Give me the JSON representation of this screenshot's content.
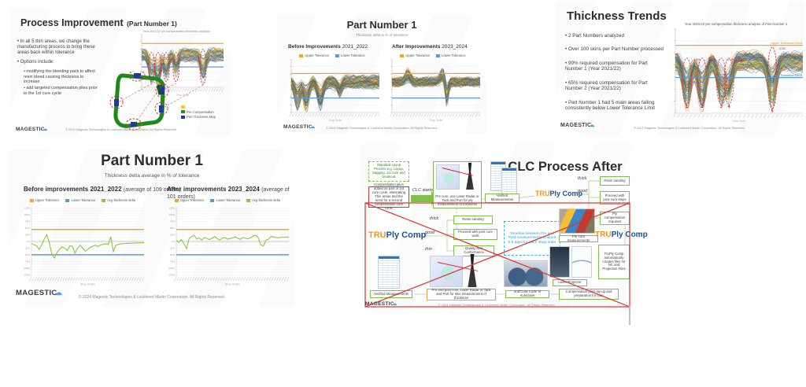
{
  "footer": {
    "text": "© 2024 Magestic Technologies & Lockheed Martin Corporation. All Rights Reserved."
  },
  "logo": {
    "name": "MAGESTIC",
    "cloud": "☁"
  },
  "slide1": {
    "title": "Process Improvement",
    "title_suffix": "(Part Number 1)",
    "bullets": [
      {
        "level": 0,
        "text": "In all 5 thin areas, we change the manufacturing process to bring these areas back within tolerance"
      },
      {
        "level": 0,
        "text": "Options include:"
      },
      {
        "level": 1,
        "text": "modifying the bleeding pack to affect resin bleed causing thickness to increase"
      },
      {
        "level": 1,
        "text": "add targeted compensation plies prior to the 1st cure cycle"
      }
    ],
    "chart_caption": "Year 2021/22 pre compensation thickness analysis",
    "legend": [
      {
        "color": "#f5c83b",
        "label": ""
      },
      {
        "color": "#2e8b2e",
        "label": "Pre Compensation"
      },
      {
        "color": "#24359c",
        "label": "Part Thickness Map"
      }
    ]
  },
  "slide2": {
    "title": "Part Number 1",
    "subtitle": "Thickness delta in % of tolerance",
    "before_bold": "Before Improvements",
    "before_rest": "2021_2022",
    "after_bold": "After Improvements",
    "after_rest": "2023_2024",
    "legend": [
      {
        "color": "#f2a33c",
        "label": "Upper Tolerance"
      },
      {
        "color": "#5b9bd5",
        "label": "Lower Tolerance"
      }
    ]
  },
  "slide3": {
    "title": "Thickness Trends",
    "bullets": [
      {
        "level": 0,
        "text": "2 Part Numbers analyzed"
      },
      {
        "level": 0,
        "text": "Over 100 skins per Part Number processed"
      },
      {
        "level": 0,
        "text": "99% required compensation for Part Number 1 (Year 2021/22)"
      },
      {
        "level": 0,
        "text": "65% required compensation for Part Number 2 (Year 2021/22)"
      },
      {
        "level": 0,
        "text": "Part Number 1 had 5 main areas falling consistently below Lower Tolerance Limit"
      }
    ],
    "chart_title": "Year 2021/22 pre compensation thickness analysis of Part Number 1"
  },
  "slide4": {
    "title": "Part Number 1",
    "subtitle": "Thickness delta average in % of tolerance",
    "before_bold": "Before improvements 2021_2022",
    "before_rest": "(average of 109 orders)",
    "after_bold": "After improvements 2023_2024",
    "after_rest": "(average of 101 orders)",
    "legend": [
      {
        "color": "#f2a33c",
        "label": "Upper Tolerance"
      },
      {
        "color": "#5b9bd5",
        "label": "Lower Tolerance"
      },
      {
        "color": "#8cc63f",
        "label": "Avg thickness delta"
      }
    ]
  },
  "slide5": {
    "title": "CLC Process After",
    "tru": "TRU",
    "ply": "Ply Comp",
    "boxes": {
      "standard": "Standard Layup Process e.g. Layup, bagging, 1st cure and breakout",
      "comp": "Compensation plies added as part of 1st cure cycle, eliminating Thin areas and the need for a second compensation cure cycle",
      "clc_starts": "CLC starts",
      "precure": "Pre cure, use Laser Radar or Tack and Port for ply measurement of thickness",
      "verified": "Verified Measurements",
      "thick": "thick",
      "good": "good",
      "thin": "thin",
      "resin1": "Resin sanding",
      "proceed1": "Proceed with post cure steps",
      "plycomp": "Ply compensation required",
      "resin2": "Resin sanding",
      "proceed2": "Proceed with post cure work",
      "quality": "Quality Non Conformance",
      "timeline": "Timeline between Pre and Post measurements is about 8-9 days for each shop order",
      "measurements2": "Verified Measurements",
      "precure2": "Pre and post cure, Laser Radar or Tack and Port for skin measurement of thickness",
      "cure2": "2nd Cure Cycle in Autoclave",
      "compplies": "Compensation plies lay up and preparation for cure",
      "laserproj": "Laser Projector",
      "autocreate": "TruPly Comp automatically creates files for NC and Projection Files",
      "pallet": "Pre cure measurements"
    }
  },
  "chart_defaults": {
    "palette": [
      "#5b9bd5",
      "#ed7d31",
      "#a5a5a5",
      "#ffc000",
      "#4472c4",
      "#70ad47",
      "#264478",
      "#9e480e",
      "#636363",
      "#997300",
      "#255e91",
      "#43682b"
    ]
  },
  "chart_data": [
    {
      "id": "s1-chart",
      "type": "line",
      "subtype": "spaghetti",
      "title": "Year 2021/22 pre compensation thickness analysis",
      "note": "~100 overlapping shop-order thickness traces; individual values not legible",
      "lines": 55,
      "seed": 7,
      "band": [
        0.3,
        0.5
      ],
      "noise": 0.1,
      "xlabel": "Shop Order",
      "dips": [
        {
          "x": 0.12,
          "d": 0.45,
          "w": 0.03
        },
        {
          "x": 0.2,
          "d": 0.5,
          "w": 0.03
        },
        {
          "x": 0.3,
          "d": 0.4,
          "w": 0.03
        },
        {
          "x": 0.42,
          "d": 0.33,
          "w": 0.025
        },
        {
          "x": 0.75,
          "d": 0.42,
          "w": 0.03
        }
      ],
      "hlines": [
        {
          "y": 0.18,
          "color": "#f2a33c"
        },
        {
          "y": 0.62,
          "color": "#5b9bd5"
        }
      ],
      "ovals": [
        {
          "x": 0.12
        },
        {
          "x": 0.2
        },
        {
          "x": 0.3
        },
        {
          "x": 0.42
        },
        {
          "x": 0.75,
          "ry": 0.33
        }
      ]
    },
    {
      "id": "s2-before",
      "type": "line",
      "subtype": "spaghetti",
      "title": "Before Improvements 2021_2022",
      "note": "~100 overlapping shop-order thickness traces; individual values not legible",
      "lines": 80,
      "seed": 11,
      "band": [
        0.34,
        0.52
      ],
      "noise": 0.11,
      "xlabel": "Shop Order",
      "dips": [
        {
          "x": 0.07,
          "d": 0.5,
          "w": 0.03
        },
        {
          "x": 0.17,
          "d": 0.55,
          "w": 0.03
        },
        {
          "x": 0.33,
          "d": 0.45,
          "w": 0.03
        },
        {
          "x": 0.55,
          "d": 0.22,
          "w": 0.025
        }
      ],
      "hlines": [
        {
          "y": 0.27,
          "color": "#f2a33c"
        },
        {
          "y": 0.73,
          "color": "#5b9bd5"
        }
      ],
      "ovals": []
    },
    {
      "id": "s2-after",
      "type": "line",
      "subtype": "spaghetti",
      "title": "After Improvements 2023_2024",
      "note": "~100 overlapping shop-order thickness traces; individual values not legible",
      "lines": 80,
      "seed": 23,
      "band": [
        0.36,
        0.5
      ],
      "noise": 0.09,
      "xlabel": "Shop Order",
      "dips": [
        {
          "x": 0.18,
          "d": -0.2,
          "w": 0.03
        },
        {
          "x": 0.58,
          "d": -0.22,
          "w": 0.03
        },
        {
          "x": 0.62,
          "d": 0.5,
          "w": 0.018
        }
      ],
      "hlines": [
        {
          "y": 0.27,
          "color": "#f2a33c"
        },
        {
          "y": 0.73,
          "color": "#5b9bd5"
        }
      ],
      "ovals": []
    },
    {
      "id": "s3-chart",
      "type": "line",
      "subtype": "spaghetti",
      "title": "Year 2021/22 pre compensation thickness analysis of Part Number 1",
      "note": "~100 overlapping shop-order thickness traces; 5 recurring thin areas circled",
      "lines": 90,
      "seed": 5,
      "band": [
        0.3,
        0.48
      ],
      "noise": 0.1,
      "xlabel": "Shop Order",
      "dips": [
        {
          "x": 0.09,
          "d": 0.5,
          "w": 0.03
        },
        {
          "x": 0.21,
          "d": 0.55,
          "w": 0.03
        },
        {
          "x": 0.36,
          "d": 0.45,
          "w": 0.028
        },
        {
          "x": 0.42,
          "d": 0.4,
          "w": 0.025
        },
        {
          "x": 0.76,
          "d": 0.5,
          "w": 0.03
        }
      ],
      "hlines": [
        {
          "y": 0.2,
          "color": "#f2a33c",
          "label": "Upper Tolerance Limit"
        },
        {
          "y": 0.58,
          "color": "#5b9bd5",
          "label": "Lower Tolerance Limit"
        }
      ],
      "ovals": [
        {
          "x": 0.09,
          "label": "1",
          "note": "-9.8%"
        },
        {
          "x": 0.21,
          "label": "2",
          "note": "-8.5%"
        },
        {
          "x": 0.36,
          "label": "3",
          "note": "-2.7%"
        },
        {
          "x": 0.42,
          "label": "4",
          "note": "-2.0%"
        },
        {
          "x": 0.76,
          "label": "5",
          "note": "-3.2%",
          "ry": 0.36,
          "cy": 0.58
        }
      ]
    },
    {
      "id": "s4-before",
      "type": "line",
      "title": "Before improvements 2021_2022 (average of 109 orders)",
      "ylabel": "% of tolerance",
      "xlabel": "Shop Orders",
      "ylim": [
        -130,
        130
      ],
      "upper_tolerance": 45,
      "lower_tolerance": -50,
      "zero_line": 0,
      "series": [
        {
          "name": "Avg thickness delta",
          "values": [
            -8,
            -12,
            -16,
            -30,
            -12,
            10,
            26,
            -6,
            -50,
            -62,
            -40,
            -28,
            -20,
            -26,
            -34,
            -16,
            -18,
            -44,
            -26,
            -14,
            -24,
            -36,
            -30,
            -22,
            -17,
            -14,
            -19,
            -13,
            -11,
            -9,
            -11,
            18,
            -38,
            -14,
            -11,
            -9,
            -8,
            -7,
            -7,
            -6,
            -6,
            -5,
            -6,
            -5,
            -4
          ]
        }
      ]
    },
    {
      "id": "s4-after",
      "type": "line",
      "title": "After improvements 2023_2024 (average of 101 orders)",
      "ylabel": "% of tolerance",
      "xlabel": "Shop Orders",
      "ylim": [
        -130,
        130
      ],
      "upper_tolerance": 45,
      "lower_tolerance": -50,
      "zero_line": 0,
      "series": [
        {
          "name": "Avg thickness delta",
          "values": [
            4,
            -3,
            7,
            -9,
            -27,
            11,
            19,
            23,
            9,
            13,
            5,
            15,
            11,
            7,
            13,
            19,
            11,
            5,
            13,
            15,
            9,
            11,
            14,
            17,
            12,
            8,
            15,
            12,
            10,
            14,
            21,
            23,
            15,
            -13,
            -17,
            5,
            8,
            19,
            17,
            15,
            14,
            16,
            15,
            17,
            16
          ]
        }
      ]
    }
  ]
}
